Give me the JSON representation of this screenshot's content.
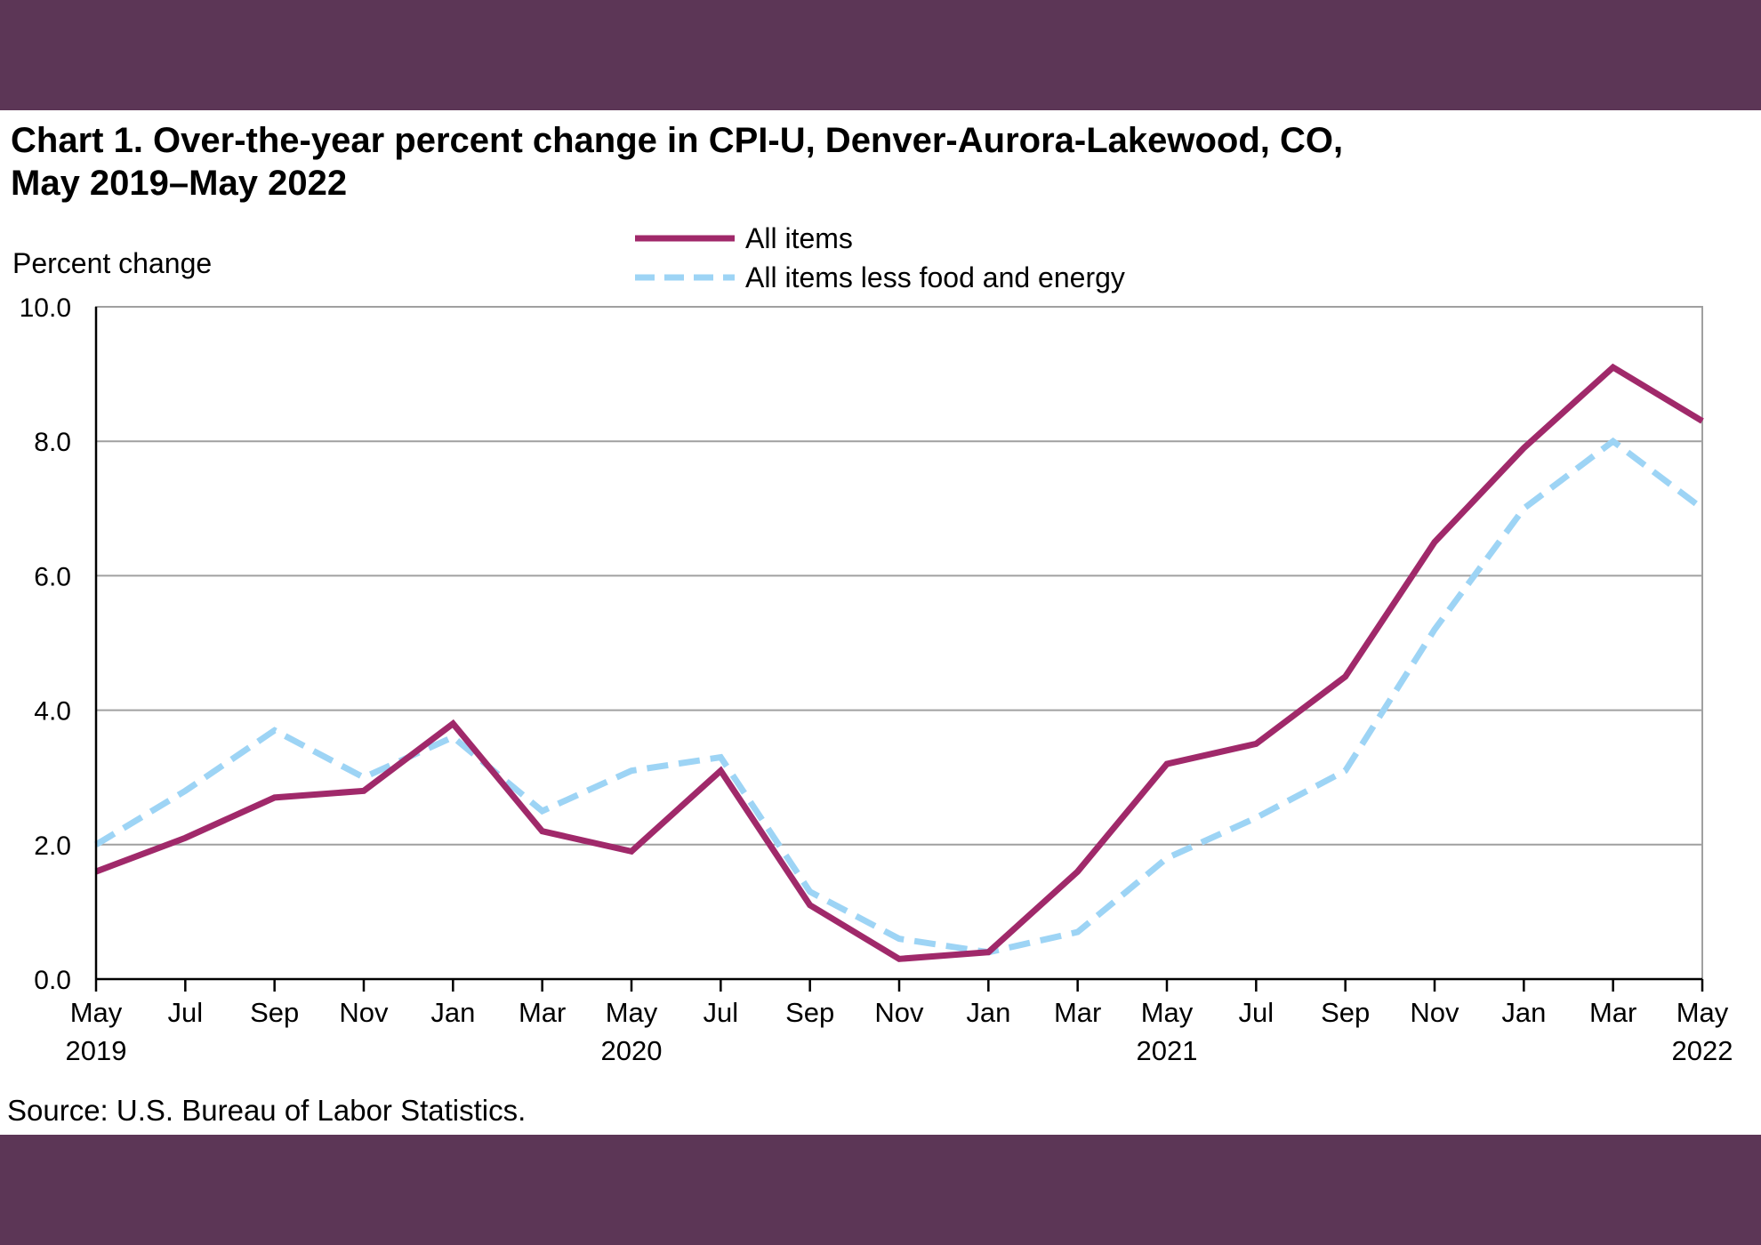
{
  "page": {
    "background": "#5c3656",
    "panel_background": "#ffffff"
  },
  "title_lines": [
    "Chart 1. Over-the-year percent change in CPI-U, Denver-Aurora-Lakewood, CO,",
    "May 2019–May 2022"
  ],
  "source": "Source: U.S. Bureau of Labor Statistics.",
  "chart_data": {
    "type": "line",
    "title": "Chart 1. Over-the-year percent change in CPI-U, Denver-Aurora-Lakewood, CO, May 2019–May 2022",
    "ylabel": "Percent change",
    "xlabel": "",
    "ylim": [
      0,
      10
    ],
    "yticks": [
      "0.0",
      "2.0",
      "4.0",
      "6.0",
      "8.0",
      "10.0"
    ],
    "grid": true,
    "legend_position": "top-center",
    "categories": [
      "May 2019",
      "Jul 2019",
      "Sep 2019",
      "Nov 2019",
      "Jan 2020",
      "Mar 2020",
      "May 2020",
      "Jul 2020",
      "Sep 2020",
      "Nov 2020",
      "Jan 2021",
      "Mar 2021",
      "May 2021",
      "Jul 2021",
      "Sep 2021",
      "Nov 2021",
      "Jan 2022",
      "Mar 2022",
      "May 2022"
    ],
    "tick_labels": [
      {
        "month": "May",
        "year": "2019"
      },
      {
        "month": "Jul",
        "year": ""
      },
      {
        "month": "Sep",
        "year": ""
      },
      {
        "month": "Nov",
        "year": ""
      },
      {
        "month": "Jan",
        "year": ""
      },
      {
        "month": "Mar",
        "year": ""
      },
      {
        "month": "May",
        "year": "2020"
      },
      {
        "month": "Jul",
        "year": ""
      },
      {
        "month": "Sep",
        "year": ""
      },
      {
        "month": "Nov",
        "year": ""
      },
      {
        "month": "Jan",
        "year": ""
      },
      {
        "month": "Mar",
        "year": ""
      },
      {
        "month": "May",
        "year": "2021"
      },
      {
        "month": "Jul",
        "year": ""
      },
      {
        "month": "Sep",
        "year": ""
      },
      {
        "month": "Nov",
        "year": ""
      },
      {
        "month": "Jan",
        "year": ""
      },
      {
        "month": "Mar",
        "year": ""
      },
      {
        "month": "May",
        "year": "2022"
      }
    ],
    "series": [
      {
        "name": "All items",
        "color": "#a0296a",
        "style": "solid",
        "values": [
          1.6,
          2.1,
          2.7,
          2.8,
          3.8,
          2.2,
          1.9,
          3.1,
          1.1,
          0.3,
          0.4,
          1.6,
          3.2,
          3.5,
          4.5,
          6.5,
          7.9,
          9.1,
          8.3
        ]
      },
      {
        "name": "All items less food and energy",
        "color": "#9dd4f5",
        "style": "dashed",
        "values": [
          2.0,
          2.8,
          3.7,
          3.0,
          3.6,
          2.5,
          3.1,
          3.3,
          1.3,
          0.6,
          0.4,
          0.7,
          1.8,
          2.4,
          3.1,
          5.2,
          7.0,
          8.0,
          7.0
        ]
      }
    ]
  }
}
